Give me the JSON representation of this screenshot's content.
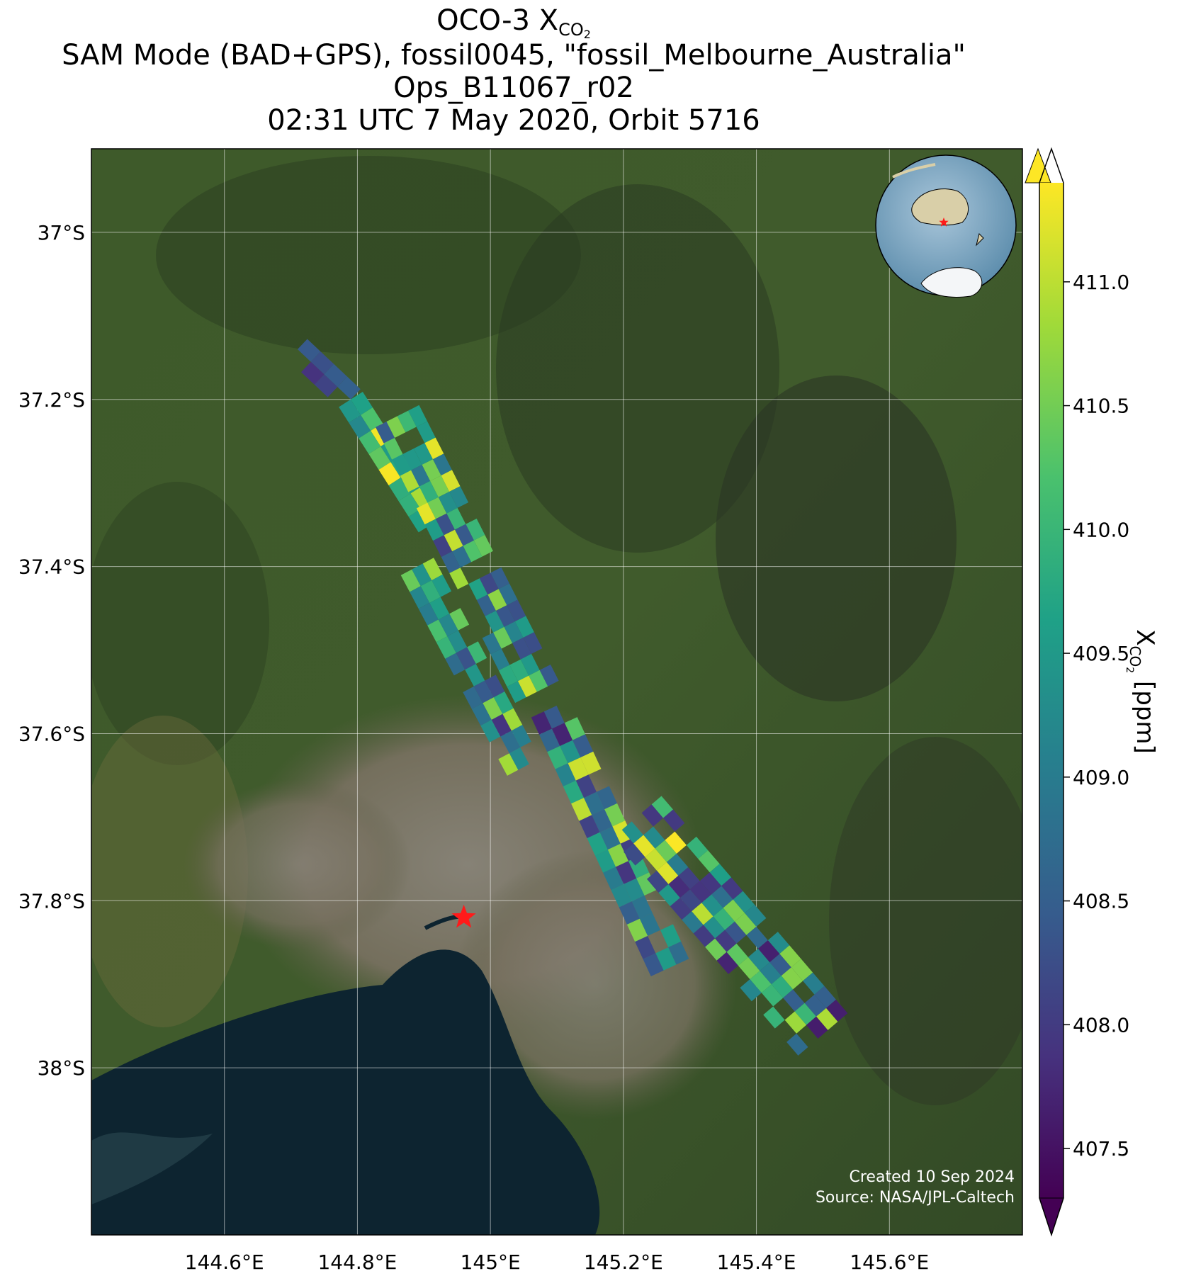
{
  "title": {
    "line1_prefix": "OCO-3 X",
    "line1_sub": "CO",
    "line1_subsub": "2",
    "line2": "SAM Mode (BAD+GPS), fossil0045, \"fossil_Melbourne_Australia\"",
    "line3": "Ops_B11067_r02",
    "line4": "02:31 UTC 7 May 2020, Orbit 5716"
  },
  "colors": {
    "target_marker": "#ff1a1a",
    "bay_water": "#0d2430",
    "land_green": "#3f5a2a",
    "urban": "#7a7468"
  },
  "icons": {
    "target": "red-star-icon",
    "inset": "globe-inset-icon"
  },
  "map": {
    "lon_range": [
      144.4,
      145.8
    ],
    "lat_range": [
      -38.2,
      -36.9
    ],
    "lon_ticks": [
      "144.6°E",
      "144.8°E",
      "145°E",
      "145.2°E",
      "145.4°E",
      "145.6°E"
    ],
    "lat_ticks": [
      "37°S",
      "37.2°S",
      "37.4°S",
      "37.6°S",
      "37.8°S",
      "38°S"
    ],
    "target": {
      "name": "fossil_Melbourne_Australia",
      "lon": 144.96,
      "lat": -37.82
    },
    "footer_line1": "Created 10 Sep 2024",
    "footer_line2": "Source: NASA/JPL-Caltech"
  },
  "colorbar": {
    "label_prefix": "X",
    "label_sub": "CO",
    "label_subsub": "2",
    "label_suffix": " [ppm]",
    "min": 407.5,
    "max": 411.0,
    "ticks": [
      "407.5",
      "408.0",
      "408.5",
      "409.0",
      "409.5",
      "410.0",
      "410.5",
      "411.0"
    ],
    "extend": "both",
    "colormap": "viridis"
  },
  "chart_data": {
    "type": "heatmap",
    "variable": "XCO2",
    "units": "ppm",
    "approx_range": [
      407.5,
      411.5
    ],
    "swaths": [
      {
        "lon_range": [
          144.71,
          144.79
        ],
        "lat_range": [
          -37.2,
          -37.14
        ],
        "typical": [
          407.8,
          408.9
        ]
      },
      {
        "lon_range": [
          144.79,
          144.91
        ],
        "lat_range": [
          -37.35,
          -37.2
        ],
        "typical": [
          409.1,
          411.4
        ]
      },
      {
        "lon_range": [
          144.86,
          145.07
        ],
        "lat_range": [
          -37.55,
          -37.22
        ],
        "typical": [
          408.0,
          411.4
        ]
      },
      {
        "lon_range": [
          144.89,
          145.05
        ],
        "lat_range": [
          -37.64,
          -37.4
        ],
        "typical": [
          407.6,
          411.2
        ]
      },
      {
        "lon_range": [
          145.09,
          145.27
        ],
        "lat_range": [
          -37.88,
          -37.57
        ],
        "typical": [
          407.6,
          411.3
        ]
      },
      {
        "lon_range": [
          145.22,
          145.5
        ],
        "lat_range": [
          -37.96,
          -37.7
        ],
        "typical": [
          407.6,
          411.4
        ]
      }
    ]
  }
}
